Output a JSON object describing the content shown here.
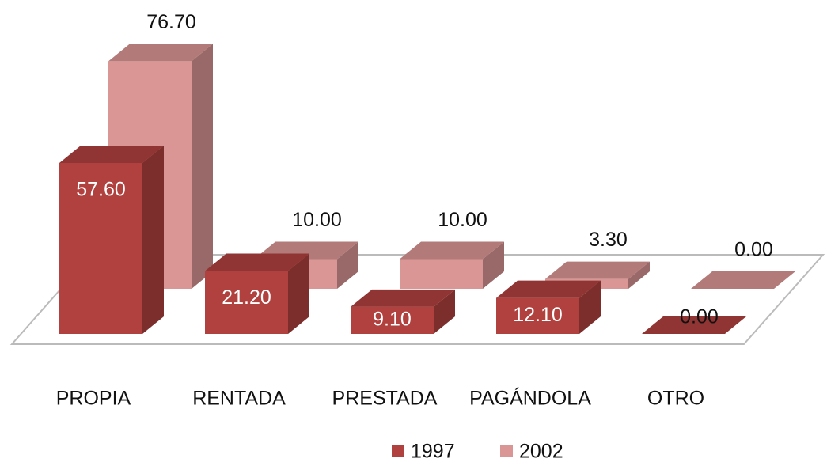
{
  "chart_data": {
    "type": "bar3d",
    "categories": [
      "PROPIA",
      "RENTADA",
      "PRESTADA",
      "PAGÁNDOLA",
      "OTRO"
    ],
    "series": [
      {
        "name": "1997",
        "color": "#b0413e",
        "values": [
          57.6,
          21.2,
          9.1,
          12.1,
          0
        ],
        "value_labels": [
          "57.60",
          "21.20",
          "9.10",
          "12.10",
          "0.00"
        ]
      },
      {
        "name": "2002",
        "color": "#d99694",
        "values": [
          76.7,
          10,
          10,
          3.3,
          0
        ],
        "value_labels": [
          "76.70",
          "10.00",
          "10.00",
          "3.30",
          "0.00"
        ]
      }
    ]
  }
}
